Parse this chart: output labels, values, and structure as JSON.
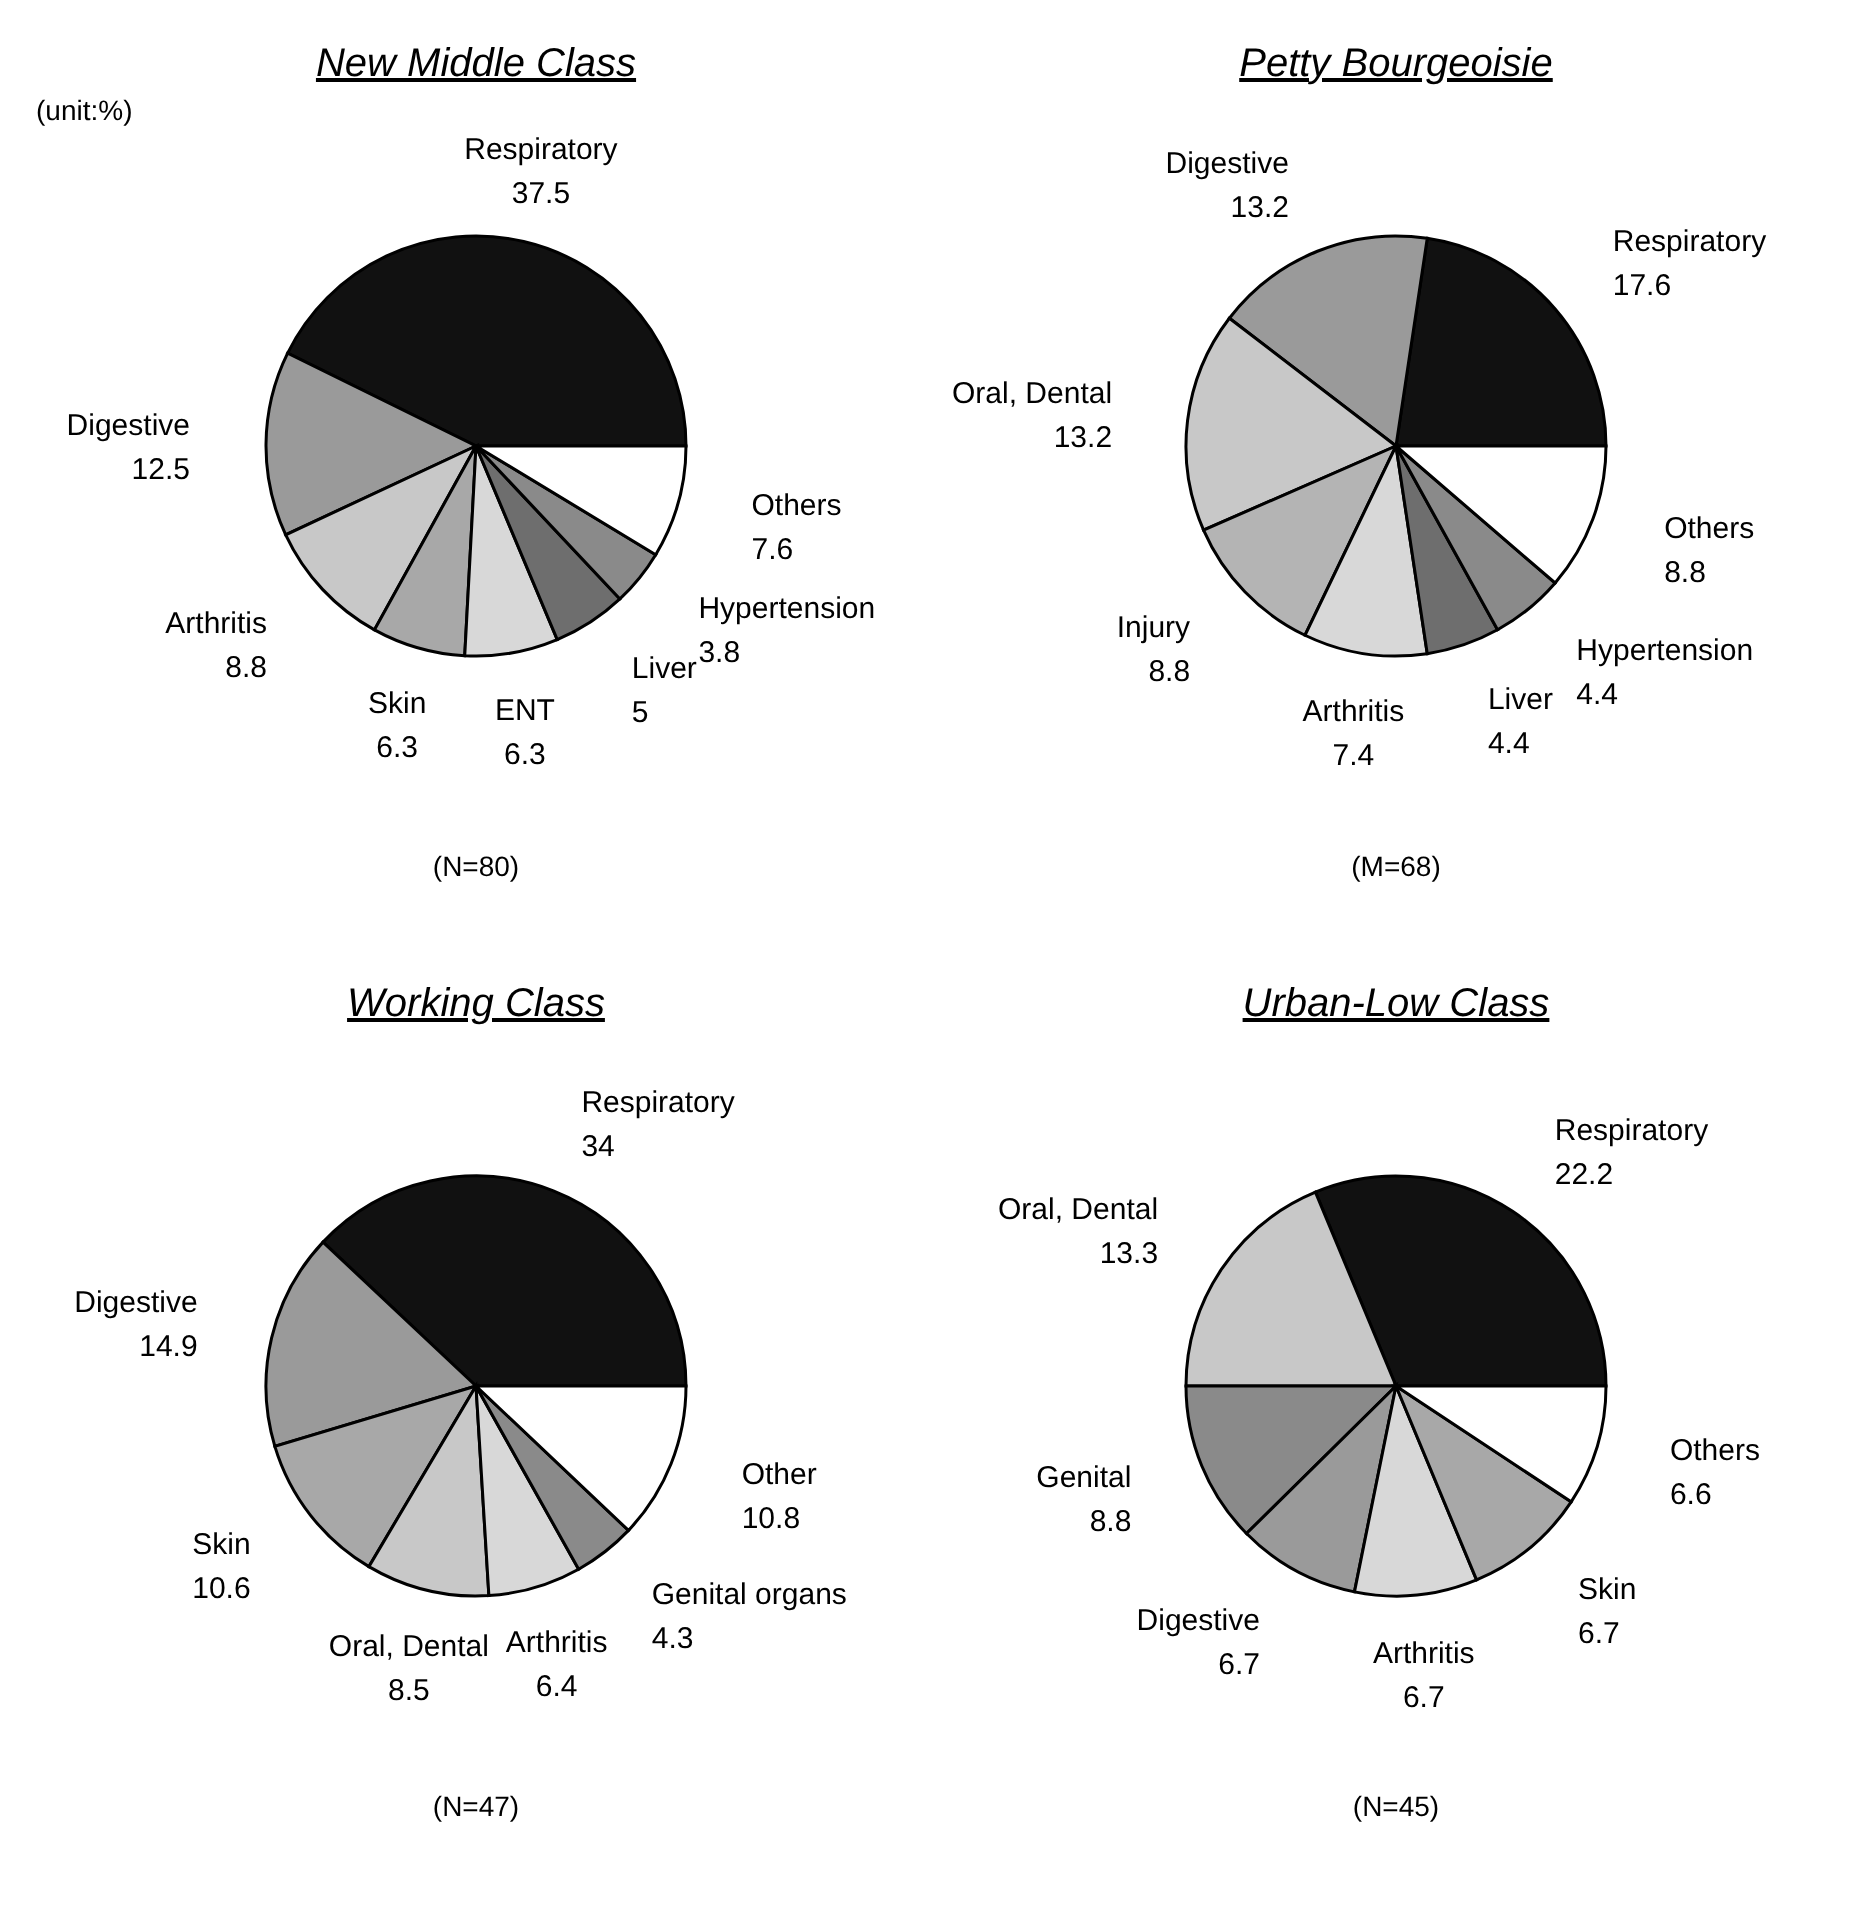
{
  "chart_data": [
    {
      "type": "pie",
      "title": "New Middle Class",
      "categories": [
        "Respiratory",
        "Digestive",
        "Arthritis",
        "Skin",
        "ENT",
        "Liver",
        "Hypertension",
        "Others"
      ],
      "values": [
        37.5,
        12.5,
        8.8,
        6.3,
        6.3,
        5,
        3.8,
        7.6
      ],
      "colors": [
        "#111111",
        "#9a9a9a",
        "#c8c8c8",
        "#a8a8a8",
        "#d8d8d8",
        "#6e6e6e",
        "#8a8a8a",
        "#ffffff"
      ],
      "data_labels": true,
      "annotations": [
        "(unit:%)",
        "(N=80)"
      ]
    },
    {
      "type": "pie",
      "title": "Petty Bourgeoisie",
      "categories": [
        "Respiratory",
        "Digestive",
        "Oral, Dental",
        "Injury",
        "Arthritis",
        "Liver",
        "Hypertension",
        "Others"
      ],
      "values": [
        17.6,
        13.2,
        13.2,
        8.8,
        7.4,
        4.4,
        4.4,
        8.8
      ],
      "colors": [
        "#111111",
        "#9a9a9a",
        "#c8c8c8",
        "#b4b4b4",
        "#d8d8d8",
        "#6e6e6e",
        "#8a8a8a",
        "#ffffff"
      ],
      "data_labels": true,
      "annotations": [
        "(M=68)"
      ]
    },
    {
      "type": "pie",
      "title": "Working Class",
      "categories": [
        "Respiratory",
        "Digestive",
        "Skin",
        "Oral, Dental",
        "Arthritis",
        "Genital organs",
        "Other"
      ],
      "values": [
        34,
        14.9,
        10.6,
        8.5,
        6.4,
        4.3,
        10.8
      ],
      "colors": [
        "#111111",
        "#9a9a9a",
        "#a8a8a8",
        "#c8c8c8",
        "#d8d8d8",
        "#8a8a8a",
        "#ffffff"
      ],
      "data_labels": true,
      "annotations": [
        "(N=47)"
      ]
    },
    {
      "type": "pie",
      "title": "Urban-Low Class",
      "categories": [
        "Respiratory",
        "Oral, Dental",
        "Genital",
        "Digestive",
        "Arthritis",
        "Skin",
        "Others"
      ],
      "values": [
        22.2,
        13.3,
        8.8,
        6.7,
        6.7,
        6.7,
        6.6
      ],
      "colors": [
        "#111111",
        "#c8c8c8",
        "#8a8a8a",
        "#9a9a9a",
        "#d8d8d8",
        "#a8a8a8",
        "#ffffff"
      ],
      "data_labels": true,
      "annotations": [
        "(N=45)"
      ]
    }
  ]
}
